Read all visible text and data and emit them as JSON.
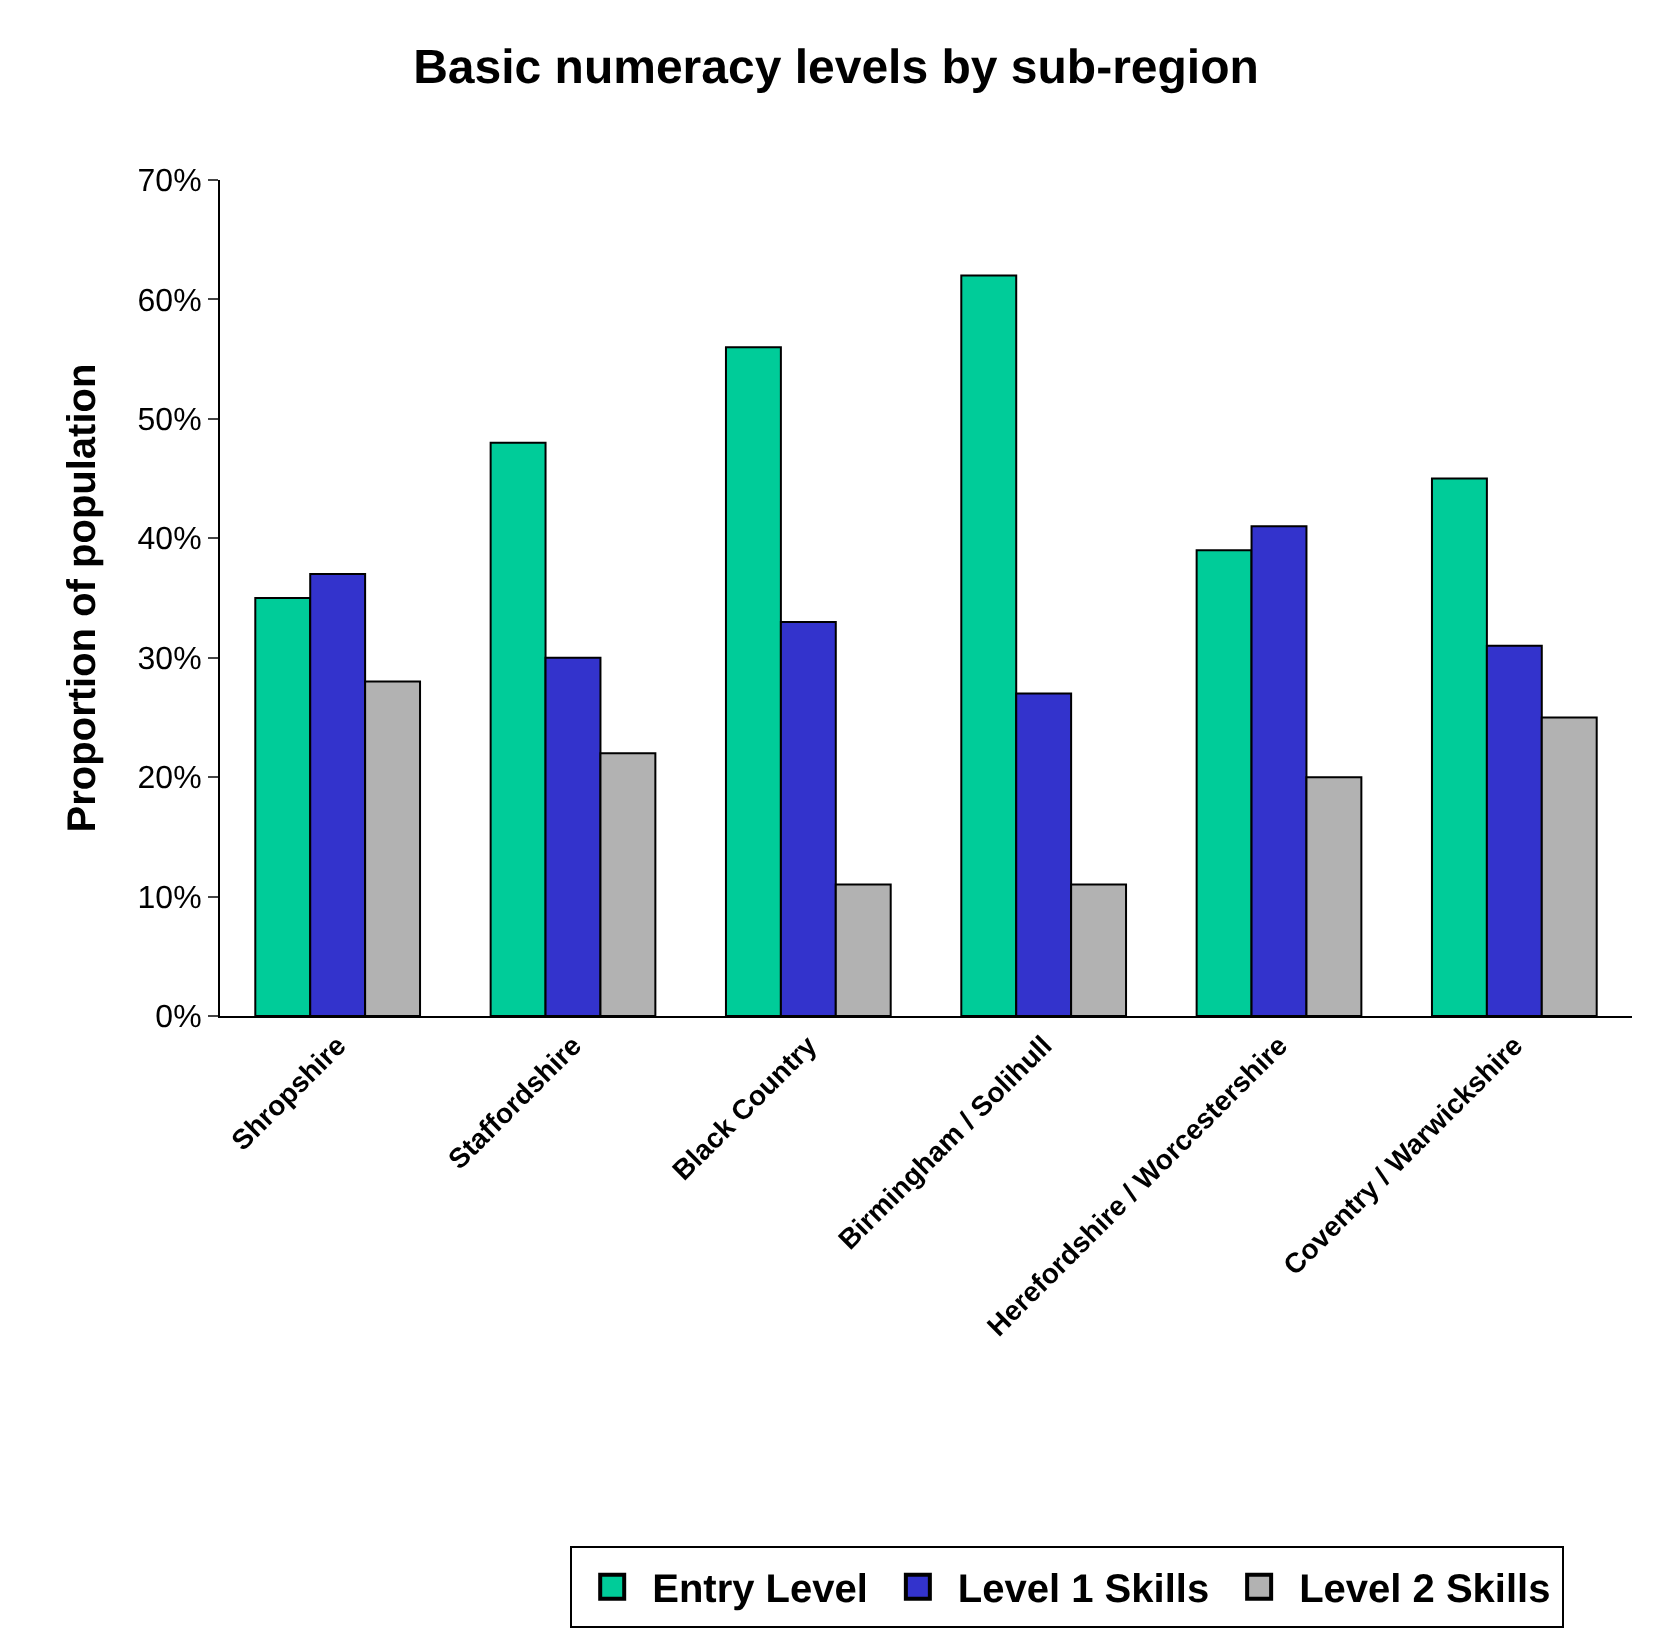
{
  "chart_data": {
    "type": "bar",
    "title": "Basic numeracy levels by sub-region",
    "ylabel": "Proportion of population",
    "categories": [
      "Shropshire",
      "Staffordshire",
      "Black Country",
      "Birmingham / Solihull",
      "Herefordshire / Worcestershire",
      "Coventry / Warwickshire"
    ],
    "series": [
      {
        "name": "Entry Level",
        "color": "#00cc99",
        "values": [
          35,
          48,
          56,
          62,
          39,
          45
        ]
      },
      {
        "name": "Level 1 Skills",
        "color": "#3333cc",
        "values": [
          37,
          30,
          33,
          27,
          41,
          31
        ]
      },
      {
        "name": "Level 2 Skills",
        "color": "#b2b2b2",
        "values": [
          28,
          22,
          11,
          11,
          20,
          25
        ]
      }
    ],
    "ylim": [
      0,
      70
    ],
    "yticks": [
      {
        "value": 0,
        "label": "0%"
      },
      {
        "value": 10,
        "label": "10%"
      },
      {
        "value": 20,
        "label": "20%"
      },
      {
        "value": 30,
        "label": "30%"
      },
      {
        "value": 40,
        "label": "40%"
      },
      {
        "value": 50,
        "label": "50%"
      },
      {
        "value": 60,
        "label": "60%"
      },
      {
        "value": 70,
        "label": "70%"
      }
    ],
    "legend": "bottom"
  }
}
